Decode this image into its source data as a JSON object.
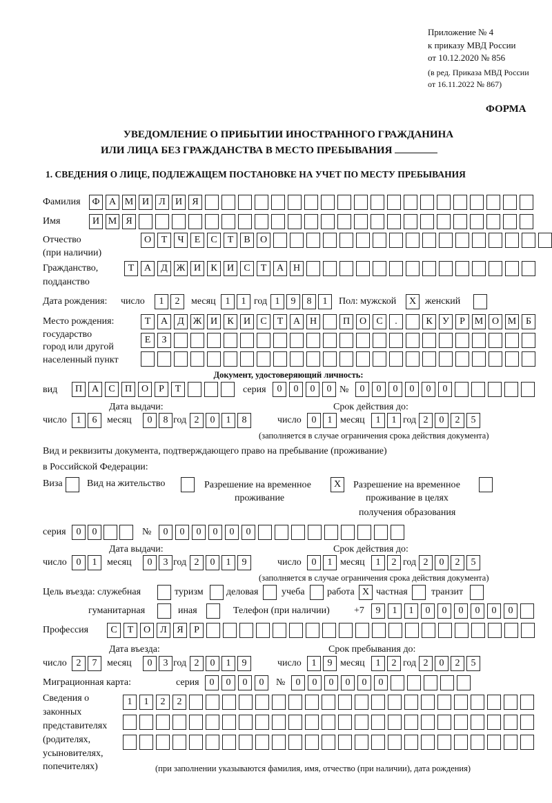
{
  "header": {
    "appendix": "Приложение № 4",
    "order": "к приказу МВД России",
    "order_date": "от 10.12.2020 № 856",
    "revision_1": "(в ред. Приказа МВД России",
    "revision_2": "от 16.11.2022 № 867)",
    "form_label": "ФОРМА"
  },
  "title": {
    "line1": "УВЕДОМЛЕНИЕ О ПРИБЫТИИ ИНОСТРАННОГО ГРАЖДАНИНА",
    "line2": "ИЛИ ЛИЦА БЕЗ ГРАЖДАНСТВА В МЕСТО ПРЕБЫВАНИЯ"
  },
  "section1": {
    "heading": "1. СВЕДЕНИЯ О ЛИЦЕ, ПОДЛЕЖАЩЕМ ПОСТАНОВКЕ НА УЧЕТ ПО МЕСТУ ПРЕБЫВАНИЯ"
  },
  "labels": {
    "surname": "Фамилия",
    "name": "Имя",
    "patronymic_1": "Отчество",
    "patronymic_2": "(при наличии)",
    "citizenship_1": "Гражданство,",
    "citizenship_2": "подданство",
    "birth_date": "Дата рождения:",
    "day": "число",
    "month": "месяц",
    "year": "год",
    "gender_male": "Пол: мужской",
    "gender_female": "женский",
    "birthplace_1": "Место рождения:",
    "birthplace_2": "государство",
    "birthplace_3": "город или другой",
    "birthplace_4": "населенный пункт",
    "id_doc_heading": "Документ, удостоверяющий личность:",
    "doc_kind": "вид",
    "series": "серия",
    "number": "№",
    "issue_date": "Дата выдачи:",
    "valid_until": "Срок действия до:",
    "validity_note": "(заполняется в случае ограничения срока действия документа)",
    "stay_doc_1": "Вид и реквизиты документа, подтверждающего право на пребывание (проживание)",
    "stay_doc_2": "в Российской Федерации:",
    "visa": "Виза",
    "residence_permit": "Вид на жительство",
    "temp_residence_1": "Разрешение на временное",
    "temp_residence_2": "проживание",
    "temp_edu_1": "Разрешение на временное",
    "temp_edu_2": "проживание в целях",
    "temp_edu_3": "получения образования",
    "purpose": "Цель въезда: служебная",
    "tourism": "туризм",
    "business": "деловая",
    "study": "учеба",
    "work": "работа",
    "private": "частная",
    "transit": "транзит",
    "humanitarian": "гуманитарная",
    "other": "иная",
    "phone": "Телефон (при наличии)",
    "phone_prefix": "+7",
    "profession": "Профессия",
    "entry_date": "Дата въезда:",
    "stay_until": "Срок пребывания до:",
    "migration_card": "Миграционная карта:",
    "legal_reps_1": "Сведения о",
    "legal_reps_2": "законных",
    "legal_reps_3": "представителях",
    "legal_reps_4": "(родителях,",
    "legal_reps_5": "усыновителях,",
    "legal_reps_6": "попечителях)",
    "legal_reps_note": "(при заполнении указываются фамилия, имя, отчество (при наличии), дата рождения)"
  },
  "fields": {
    "surname": [
      "Ф",
      "А",
      "М",
      "И",
      "Л",
      "И",
      "Я",
      "",
      "",
      "",
      "",
      "",
      "",
      "",
      "",
      "",
      "",
      "",
      "",
      "",
      "",
      "",
      "",
      "",
      "",
      "",
      ""
    ],
    "name": [
      "И",
      "М",
      "Я",
      "",
      "",
      "",
      "",
      "",
      "",
      "",
      "",
      "",
      "",
      "",
      "",
      "",
      "",
      "",
      "",
      "",
      "",
      "",
      "",
      "",
      "",
      "",
      ""
    ],
    "patronymic": [
      "О",
      "Т",
      "Ч",
      "Е",
      "С",
      "Т",
      "В",
      "О",
      "",
      "",
      "",
      "",
      "",
      "",
      "",
      "",
      "",
      "",
      "",
      "",
      "",
      "",
      "",
      "",
      ""
    ],
    "citizenship": [
      "Т",
      "А",
      "Д",
      "Ж",
      "И",
      "К",
      "И",
      "С",
      "Т",
      "А",
      "Н",
      "",
      "",
      "",
      "",
      "",
      "",
      "",
      "",
      "",
      "",
      "",
      "",
      "",
      ""
    ],
    "birth_day": [
      "1",
      "2"
    ],
    "birth_month": [
      "1",
      "1"
    ],
    "birth_year": [
      "1",
      "9",
      "8",
      "1"
    ],
    "gender_male": "X",
    "gender_female": "",
    "birthplace_1": [
      "Т",
      "А",
      "Д",
      "Ж",
      "И",
      "К",
      "И",
      "С",
      "Т",
      "А",
      "Н",
      "",
      "П",
      "О",
      "С",
      ".",
      "",
      "К",
      "У",
      "Р",
      "М",
      "О",
      "М",
      "Б"
    ],
    "birthplace_2": [
      "Е",
      "З",
      "",
      "",
      "",
      "",
      "",
      "",
      "",
      "",
      "",
      "",
      "",
      "",
      "",
      "",
      "",
      "",
      "",
      "",
      "",
      "",
      "",
      ""
    ],
    "birthplace_3": [
      "",
      "",
      "",
      "",
      "",
      "",
      "",
      "",
      "",
      "",
      "",
      "",
      "",
      "",
      "",
      "",
      "",
      "",
      "",
      "",
      "",
      "",
      "",
      ""
    ],
    "id_kind": [
      "П",
      "А",
      "С",
      "П",
      "О",
      "Р",
      "Т",
      "",
      "",
      ""
    ],
    "id_series": [
      "0",
      "0",
      "0",
      "0"
    ],
    "id_number": [
      "0",
      "0",
      "0",
      "0",
      "0",
      "0",
      "",
      "",
      "",
      "",
      ""
    ],
    "id_issue_day": [
      "1",
      "6"
    ],
    "id_issue_month": [
      "0",
      "8"
    ],
    "id_issue_year": [
      "2",
      "0",
      "1",
      "8"
    ],
    "id_valid_day": [
      "0",
      "1"
    ],
    "id_valid_month": [
      "1",
      "1"
    ],
    "id_valid_year": [
      "2",
      "0",
      "2",
      "5"
    ],
    "visa": "",
    "residence_permit": "",
    "temp_residence": "X",
    "temp_residence_edu": "",
    "stay_series": [
      "0",
      "0",
      "",
      ""
    ],
    "stay_number": [
      "0",
      "0",
      "0",
      "0",
      "0",
      "0",
      "",
      "",
      "",
      "",
      "",
      "",
      "",
      "",
      ""
    ],
    "stay_issue_day": [
      "0",
      "1"
    ],
    "stay_issue_month": [
      "0",
      "3"
    ],
    "stay_issue_year": [
      "2",
      "0",
      "1",
      "9"
    ],
    "stay_valid_day": [
      "0",
      "1"
    ],
    "stay_valid_month": [
      "1",
      "2"
    ],
    "stay_valid_year": [
      "2",
      "0",
      "2",
      "5"
    ],
    "purpose_official": "",
    "purpose_tourism": "",
    "purpose_business": "",
    "purpose_study": "",
    "purpose_work": "X",
    "purpose_private": "",
    "purpose_transit": "",
    "purpose_humanitarian": "",
    "purpose_other": "",
    "phone": [
      "9",
      "1",
      "1",
      "0",
      "0",
      "0",
      "0",
      "0",
      "0",
      ""
    ],
    "profession": [
      "С",
      "Т",
      "О",
      "Л",
      "Я",
      "Р",
      "",
      "",
      "",
      "",
      "",
      "",
      "",
      "",
      "",
      "",
      "",
      "",
      "",
      "",
      "",
      "",
      "",
      "",
      "",
      ""
    ],
    "entry_day": [
      "2",
      "7"
    ],
    "entry_month": [
      "0",
      "3"
    ],
    "entry_year": [
      "2",
      "0",
      "1",
      "9"
    ],
    "stay_until_day": [
      "1",
      "9"
    ],
    "stay_until_month": [
      "1",
      "2"
    ],
    "stay_until_year": [
      "2",
      "0",
      "2",
      "5"
    ],
    "migration_series": [
      "0",
      "0",
      "0",
      "0"
    ],
    "migration_number": [
      "0",
      "0",
      "0",
      "0",
      "0",
      "0",
      "",
      "",
      "",
      "",
      ""
    ],
    "legal_reps_1": [
      "1",
      "1",
      "2",
      "2",
      "",
      "",
      "",
      "",
      "",
      "",
      "",
      "",
      "",
      "",
      "",
      "",
      "",
      "",
      "",
      "",
      "",
      "",
      "",
      "",
      ""
    ],
    "legal_reps_2": [
      "",
      "",
      "",
      "",
      "",
      "",
      "",
      "",
      "",
      "",
      "",
      "",
      "",
      "",
      "",
      "",
      "",
      "",
      "",
      "",
      "",
      "",
      "",
      "",
      ""
    ],
    "legal_reps_3": [
      "",
      "",
      "",
      "",
      "",
      "",
      "",
      "",
      "",
      "",
      "",
      "",
      "",
      "",
      "",
      "",
      "",
      "",
      "",
      "",
      "",
      "",
      "",
      "",
      ""
    ]
  }
}
